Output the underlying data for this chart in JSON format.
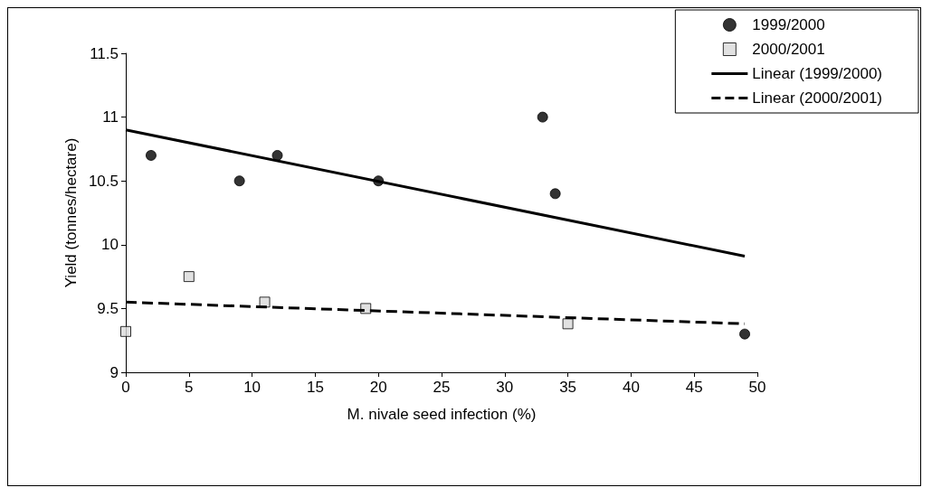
{
  "chart_data": {
    "type": "scatter",
    "xlabel": "M. nivale seed infection (%)",
    "ylabel": "Yield (tonnes/hectare)",
    "xlim": [
      0,
      50
    ],
    "xticks": [
      0,
      5,
      10,
      15,
      20,
      25,
      30,
      35,
      40,
      45,
      50
    ],
    "ylim": [
      9,
      11.5
    ],
    "yticks": [
      9,
      9.5,
      10,
      10.5,
      11,
      11.5
    ],
    "grid": false,
    "legend": "top right",
    "series": [
      {
        "name": "1999/2000",
        "marker": "circle",
        "color": "#000000",
        "x": [
          2,
          9,
          12,
          20,
          33,
          34,
          49
        ],
        "values": [
          10.7,
          10.5,
          10.7,
          10.5,
          11.0,
          10.4,
          9.3
        ]
      },
      {
        "name": "2000/2001",
        "marker": "square",
        "color": "#d9d9d9",
        "x": [
          0,
          5,
          11,
          19,
          35
        ],
        "values": [
          9.32,
          9.75,
          9.55,
          9.5,
          9.38
        ]
      },
      {
        "name": "Linear (1999/2000)",
        "type": "line",
        "marker": "none",
        "line_style": "solid",
        "color": "#000000",
        "x": [
          0,
          49
        ],
        "values": [
          10.9,
          9.91
        ]
      },
      {
        "name": "Linear (2000/2001)",
        "type": "line",
        "marker": "none",
        "line_style": "dashed",
        "color": "#000000",
        "x": [
          0,
          49
        ],
        "values": [
          9.55,
          9.38
        ]
      }
    ]
  }
}
